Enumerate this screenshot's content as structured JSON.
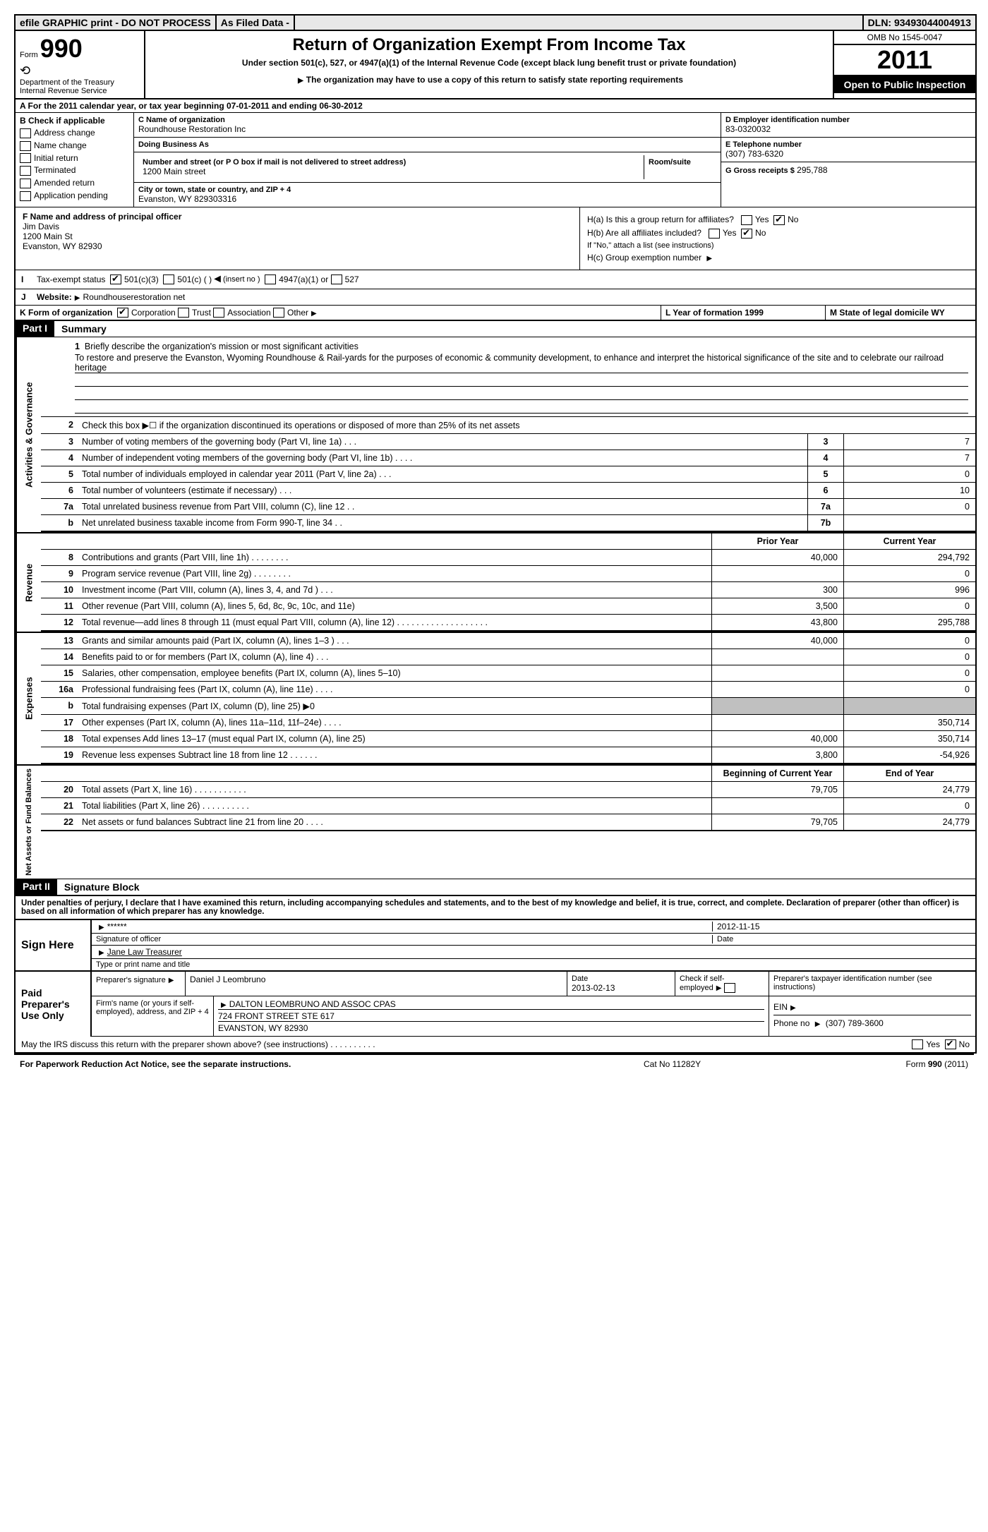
{
  "topbar": {
    "efile": "efile GRAPHIC print - DO NOT PROCESS",
    "asfiled": "As Filed Data -",
    "dln_label": "DLN:",
    "dln": "93493044004913"
  },
  "header": {
    "form_word": "Form",
    "form_no": "990",
    "dept1": "Department of the Treasury",
    "dept2": "Internal Revenue Service",
    "title": "Return of Organization Exempt From Income Tax",
    "subtitle": "Under section 501(c), 527, or 4947(a)(1) of the Internal Revenue Code (except black lung benefit trust or private foundation)",
    "note": "The organization may have to use a copy of this return to satisfy state reporting requirements",
    "omb": "OMB No 1545-0047",
    "year": "2011",
    "open": "Open to Public Inspection"
  },
  "rowA": "A For the 2011 calendar year, or tax year beginning 07-01-2011    and ending 06-30-2012",
  "colB": {
    "hdr": "B Check if applicable",
    "items": [
      "Address change",
      "Name change",
      "Initial return",
      "Terminated",
      "Amended return",
      "Application pending"
    ]
  },
  "colC": {
    "name_lbl": "C Name of organization",
    "name": "Roundhouse Restoration Inc",
    "dba_lbl": "Doing Business As",
    "dba": "",
    "street_lbl": "Number and street (or P O  box if mail is not delivered to street address)",
    "room_lbl": "Room/suite",
    "street": "1200 Main street",
    "city_lbl": "City or town, state or country, and ZIP + 4",
    "city": "Evanston, WY  829303316"
  },
  "colD": {
    "ein_lbl": "D Employer identification number",
    "ein": "83-0320032",
    "tel_lbl": "E Telephone number",
    "tel": "(307) 783-6320",
    "gross_lbl": "G Gross receipts $",
    "gross": "295,788"
  },
  "boxF": {
    "lbl": "F    Name and address of principal officer",
    "l1": "Jim Davis",
    "l2": "1200 Main St",
    "l3": "Evanston, WY  82930"
  },
  "boxH": {
    "ha": "H(a)  Is this a group return for affiliates?",
    "hb": "H(b)  Are all affiliates included?",
    "hb2": "If \"No,\" attach a list  (see instructions)",
    "hc": "H(c)   Group exemption number",
    "yes": "Yes",
    "no": "No"
  },
  "rowI": {
    "lbl": "I",
    "text": "Tax-exempt status",
    "opts": [
      "501(c)(3)",
      "501(c) (    )",
      "(insert no )",
      "4947(a)(1) or",
      "527"
    ]
  },
  "rowJ": {
    "lbl": "J",
    "text": "Website:",
    "val": "Roundhouserestoration net"
  },
  "rowKL": {
    "k": "K Form of organization",
    "kopts": [
      "Corporation",
      "Trust",
      "Association",
      "Other"
    ],
    "l": "L Year of formation  1999",
    "m": "M State of legal domicile WY"
  },
  "part1": {
    "num": "Part I",
    "title": "Summary"
  },
  "vtabs": {
    "ag": "Activities & Governance",
    "rev": "Revenue",
    "exp": "Expenses",
    "net": "Net Assets or Fund Balances"
  },
  "mission": {
    "num": "1",
    "lead": "Briefly describe the organization's mission or most significant activities",
    "text": "To restore and preserve the Evanston, Wyoming Roundhouse & Rail-yards for the purposes of economic & community development, to enhance and interpret the historical significance of the site and to celebrate our railroad heritage"
  },
  "line2": {
    "num": "2",
    "text": "Check this box ▶☐ if the organization discontinued its operations or disposed of more than 25% of its net assets"
  },
  "govLines": [
    {
      "n": "3",
      "d": "Number of voting members of the governing body (Part VI, line 1a)   .    .    .",
      "b": "3",
      "v": "7"
    },
    {
      "n": "4",
      "d": "Number of independent voting members of the governing body (Part VI, line 1b)   .    .    .    .",
      "b": "4",
      "v": "7"
    },
    {
      "n": "5",
      "d": "Total number of individuals employed in calendar year 2011 (Part V, line 2a)    .    .    .",
      "b": "5",
      "v": "0"
    },
    {
      "n": "6",
      "d": "Total number of volunteers (estimate if necessary)    .    .    .",
      "b": "6",
      "v": "10"
    },
    {
      "n": "7a",
      "d": "Total unrelated business revenue from Part VIII, column (C), line 12   .    .",
      "b": "7a",
      "v": "0"
    },
    {
      "n": "b",
      "d": "Net unrelated business taxable income from Form 990-T, line 34   .    .",
      "b": "7b",
      "v": ""
    }
  ],
  "yearHdr": {
    "prior": "Prior Year",
    "current": "Current Year"
  },
  "revLines": [
    {
      "n": "8",
      "d": "Contributions and grants (Part VIII, line 1h)   .    .    .    .    .    .    .    .",
      "p": "40,000",
      "c": "294,792"
    },
    {
      "n": "9",
      "d": "Program service revenue (Part VIII, line 2g)    .    .    .    .    .    .    .    .",
      "p": "",
      "c": "0"
    },
    {
      "n": "10",
      "d": "Investment income (Part VIII, column (A), lines 3, 4, and 7d )   .    .    .",
      "p": "300",
      "c": "996"
    },
    {
      "n": "11",
      "d": "Other revenue (Part VIII, column (A), lines 5, 6d, 8c, 9c, 10c, and 11e)",
      "p": "3,500",
      "c": "0"
    },
    {
      "n": "12",
      "d": "Total revenue—add lines 8 through 11 (must equal Part VIII, column (A), line 12)  .    .    .    .    .    .    .    .    .    .    .    .    .    .    .    .    .    .    .",
      "p": "43,800",
      "c": "295,788"
    }
  ],
  "expLines": [
    {
      "n": "13",
      "d": "Grants and similar amounts paid (Part IX, column (A), lines 1–3 )   .    .    .",
      "p": "40,000",
      "c": "0"
    },
    {
      "n": "14",
      "d": "Benefits paid to or for members (Part IX, column (A), line 4)   .    .    .",
      "p": "",
      "c": "0"
    },
    {
      "n": "15",
      "d": "Salaries, other compensation, employee benefits (Part IX, column (A), lines 5–10)",
      "p": "",
      "c": "0"
    },
    {
      "n": "16a",
      "d": "Professional fundraising fees (Part IX, column (A), line 11e)   .    .    .    .",
      "p": "",
      "c": "0"
    },
    {
      "n": "b",
      "d": "Total fundraising expenses (Part IX, column (D), line 25) ▶0",
      "p": "shade",
      "c": "shade"
    },
    {
      "n": "17",
      "d": "Other expenses (Part IX, column (A), lines 11a–11d, 11f–24e)    .    .    .    .",
      "p": "",
      "c": "350,714"
    },
    {
      "n": "18",
      "d": "Total expenses  Add lines 13–17 (must equal Part IX, column (A), line 25)",
      "p": "40,000",
      "c": "350,714"
    },
    {
      "n": "19",
      "d": "Revenue less expenses  Subtract line 18 from line 12  .    .    .    .    .    .",
      "p": "3,800",
      "c": "-54,926"
    }
  ],
  "netHdr": {
    "beg": "Beginning of Current Year",
    "end": "End of Year"
  },
  "netLines": [
    {
      "n": "20",
      "d": "Total assets (Part X, line 16)   .    .    .    .    .    .    .    .    .    .    .",
      "p": "79,705",
      "c": "24,779"
    },
    {
      "n": "21",
      "d": "Total liabilities (Part X, line 26)   .    .    .    .    .    .    .    .    .    .",
      "p": "",
      "c": "0"
    },
    {
      "n": "22",
      "d": "Net assets or fund balances  Subtract line 21 from line 20   .    .    .    .",
      "p": "79,705",
      "c": "24,779"
    }
  ],
  "part2": {
    "num": "Part II",
    "title": "Signature Block"
  },
  "declare": "Under penalties of perjury, I declare that I have examined this return, including accompanying schedules and statements, and to the best of my knowledge and belief, it is true, correct, and complete. Declaration of preparer (other than officer) is based on all information of which preparer has any knowledge.",
  "sign": {
    "left": "Sign Here",
    "stars": "******",
    "sig_lbl": "Signature of officer",
    "date": "2012-11-15",
    "date_lbl": "Date",
    "name": "Jane Law Treasurer",
    "name_lbl": "Type or print name and title"
  },
  "paid": {
    "left": "Paid Preparer's Use Only",
    "prep_sig_lbl": "Preparer's signature",
    "prep_name": "Daniel J Leombruno",
    "date_lbl": "Date",
    "date": "2013-02-13",
    "check_lbl": "Check if self-employed",
    "ptin_lbl": "Preparer's taxpayer identification number (see instructions)",
    "firm_lbl": "Firm's name (or yours if self-employed), address, and ZIP + 4",
    "firm_name": "DALTON LEOMBRUNO AND ASSOC CPAS",
    "firm_addr": "724 FRONT STREET STE 617",
    "firm_city": "EVANSTON, WY  82930",
    "ein_lbl": "EIN",
    "phone_lbl": "Phone no",
    "phone": "(307) 789-3600"
  },
  "irsline": {
    "text": "May the IRS discuss this return with the preparer shown above? (see instructions)   .    .    .    .    .    .    .    .    .    .",
    "yes": "Yes",
    "no": "No"
  },
  "footer": {
    "left": "For Paperwork Reduction Act Notice, see the separate instructions.",
    "mid": "Cat No  11282Y",
    "right": "Form 990 (2011)"
  }
}
